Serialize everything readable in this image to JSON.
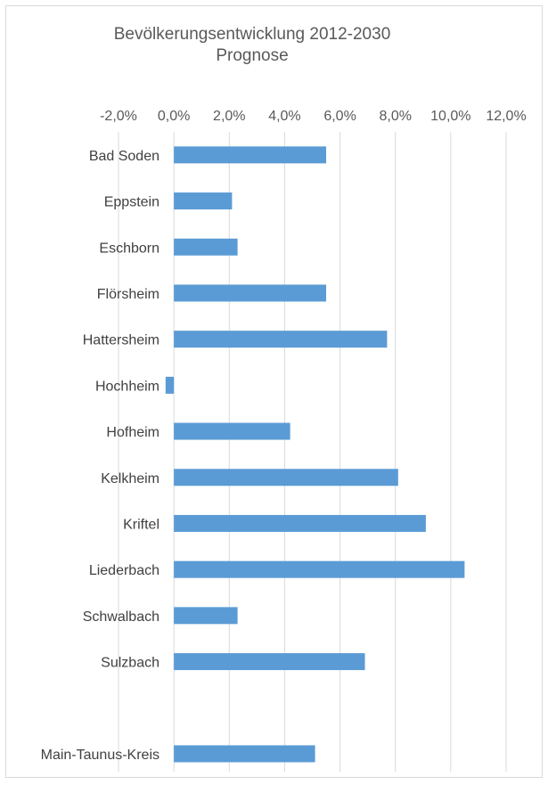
{
  "chart_data": {
    "type": "bar",
    "orientation": "horizontal",
    "title": "Bevölkerungsentwicklung 2012-2030",
    "subtitle": "Prognose",
    "categories": [
      "Bad Soden",
      "Eppstein",
      "Eschborn",
      "Flörsheim",
      "Hattersheim",
      "Hochheim",
      "Hofheim",
      "Kelkheim",
      "Kriftel",
      "Liederbach",
      "Schwalbach",
      "Sulzbach",
      "",
      "Main-Taunus-Kreis"
    ],
    "values": [
      5.5,
      2.1,
      2.3,
      5.5,
      7.7,
      -0.3,
      4.2,
      8.1,
      9.1,
      10.5,
      2.3,
      6.9,
      null,
      5.1
    ],
    "x_ticks": [
      "-2,0%",
      "0,0%",
      "2,0%",
      "4,0%",
      "6,0%",
      "8,0%",
      "10,0%",
      "12,0%"
    ],
    "x_tick_values": [
      -2,
      0,
      2,
      4,
      6,
      8,
      10,
      12
    ],
    "xlim": [
      -2,
      12
    ],
    "axis_position": "top",
    "grid": true,
    "bar_color": "#5b9bd5"
  }
}
